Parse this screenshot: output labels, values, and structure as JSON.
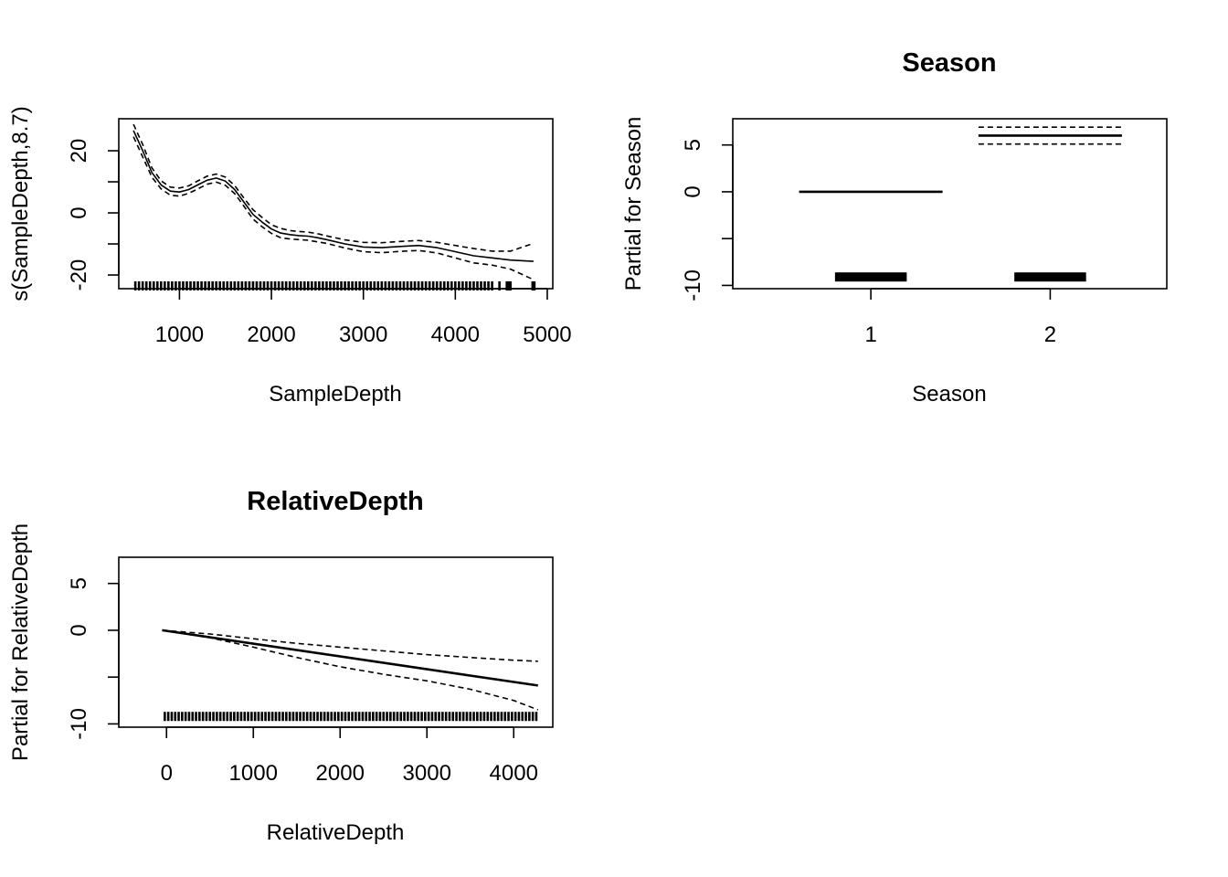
{
  "figure": {
    "background": "#ffffff",
    "ink": "#000000"
  },
  "chart_data": [
    {
      "id": "panel-sampledepth",
      "type": "line",
      "title": "",
      "xlabel": "SampleDepth",
      "ylabel": "s(SampleDepth,8.7)",
      "xlim": [
        340,
        5060
      ],
      "ylim": [
        -24.4,
        30.3
      ],
      "xticks": [
        1000,
        2000,
        3000,
        4000,
        5000
      ],
      "xtick_labels": [
        "1000",
        "2000",
        "3000",
        "4000",
        "5000"
      ],
      "yticks": [
        -20,
        -10,
        0,
        10,
        20
      ],
      "ytick_labels": [
        "-20",
        "",
        "0",
        "",
        "20"
      ],
      "grid": false,
      "series": [
        {
          "name": "fit",
          "style": "solid",
          "x": [
            500,
            600,
            700,
            800,
            900,
            1000,
            1100,
            1200,
            1300,
            1400,
            1500,
            1600,
            1700,
            1800,
            1900,
            2000,
            2100,
            2200,
            2300,
            2400,
            2500,
            2600,
            2800,
            3000,
            3200,
            3400,
            3600,
            3800,
            4000,
            4200,
            4400,
            4600,
            4850
          ],
          "y": [
            26.5,
            20,
            13,
            9,
            7,
            6.7,
            7.5,
            9,
            10.5,
            11.2,
            10.2,
            7.5,
            3.5,
            -0.5,
            -3,
            -5.2,
            -6.5,
            -7,
            -7.3,
            -7.5,
            -8,
            -8.6,
            -10,
            -11,
            -11.2,
            -10.8,
            -10.5,
            -11.2,
            -12.5,
            -13.8,
            -14.5,
            -15.2,
            -15.6
          ]
        },
        {
          "name": "upper",
          "style": "dashed",
          "x": [
            500,
            600,
            700,
            800,
            900,
            1000,
            1100,
            1200,
            1300,
            1400,
            1500,
            1600,
            1700,
            1800,
            1900,
            2000,
            2100,
            2200,
            2300,
            2400,
            2500,
            2600,
            2800,
            3000,
            3200,
            3400,
            3600,
            3800,
            4000,
            4200,
            4400,
            4600,
            4850
          ],
          "y": [
            28.5,
            22,
            14.5,
            10.3,
            8.3,
            8,
            8.7,
            10.3,
            11.8,
            12.5,
            11.5,
            8.8,
            4.8,
            1,
            -1.5,
            -3.8,
            -5,
            -5.7,
            -6,
            -6.2,
            -6.7,
            -7.4,
            -8.7,
            -9.5,
            -9.6,
            -9.2,
            -8.9,
            -9.5,
            -10.5,
            -11.5,
            -12.3,
            -12.3,
            -9.8
          ]
        },
        {
          "name": "lower",
          "style": "dashed",
          "x": [
            500,
            600,
            700,
            800,
            900,
            1000,
            1100,
            1200,
            1300,
            1400,
            1500,
            1600,
            1700,
            1800,
            1900,
            2000,
            2100,
            2200,
            2300,
            2400,
            2500,
            2600,
            2800,
            3000,
            3200,
            3400,
            3600,
            3800,
            4000,
            4200,
            4400,
            4600,
            4850
          ],
          "y": [
            24.5,
            18,
            11.5,
            7.7,
            5.7,
            5.4,
            6.3,
            7.7,
            9.2,
            9.9,
            8.9,
            6.2,
            2.2,
            -2,
            -4.5,
            -6.6,
            -8,
            -8.4,
            -8.6,
            -8.8,
            -9.3,
            -9.8,
            -11.3,
            -12.5,
            -12.8,
            -12.4,
            -12.1,
            -12.9,
            -14.5,
            -16.1,
            -16.8,
            -18.1,
            -21.5
          ]
        }
      ],
      "rug": {
        "y": -23.5,
        "x": [
          520,
          560,
          600,
          640,
          680,
          720,
          760,
          800,
          840,
          880,
          920,
          960,
          1000,
          1040,
          1080,
          1120,
          1160,
          1200,
          1240,
          1280,
          1320,
          1360,
          1400,
          1440,
          1480,
          1520,
          1560,
          1600,
          1640,
          1680,
          1720,
          1760,
          1800,
          1840,
          1880,
          1920,
          1960,
          2000,
          2040,
          2080,
          2120,
          2160,
          2200,
          2240,
          2280,
          2320,
          2360,
          2400,
          2440,
          2480,
          2520,
          2560,
          2600,
          2640,
          2680,
          2720,
          2760,
          2800,
          2840,
          2880,
          2920,
          2960,
          3000,
          3040,
          3080,
          3120,
          3160,
          3200,
          3240,
          3280,
          3320,
          3360,
          3400,
          3440,
          3480,
          3520,
          3560,
          3600,
          3640,
          3680,
          3720,
          3760,
          3800,
          3840,
          3880,
          3920,
          3960,
          4000,
          4040,
          4080,
          4120,
          4160,
          4200,
          4240,
          4280,
          4320,
          4360,
          4400,
          4480,
          4560,
          4580,
          4600,
          4840,
          4860
        ]
      }
    },
    {
      "id": "panel-season",
      "type": "line",
      "title": "Season",
      "xlabel": "Season",
      "ylabel": "Partial for Season",
      "xlim": [
        0.23,
        2.65
      ],
      "ylim": [
        -10.35,
        7.8
      ],
      "xticks": [
        1,
        2
      ],
      "xtick_labels": [
        "1",
        "2"
      ],
      "yticks": [
        -10,
        -5,
        0,
        5
      ],
      "ytick_labels": [
        "-10",
        "",
        "0",
        "5"
      ],
      "grid": false,
      "series": [
        {
          "name": "level 1 fit",
          "style": "solid",
          "weight": "thick",
          "x": [
            0.6,
            1.4
          ],
          "y": [
            0,
            0
          ]
        },
        {
          "name": "level 2 fit",
          "style": "solid",
          "weight": "thick",
          "x": [
            1.6,
            2.4
          ],
          "y": [
            6,
            6
          ]
        },
        {
          "name": "level 2 upper",
          "style": "dashed",
          "x": [
            1.6,
            2.4
          ],
          "y": [
            6.9,
            6.9
          ]
        },
        {
          "name": "level 2 lower",
          "style": "dashed",
          "x": [
            1.6,
            2.4
          ],
          "y": [
            5.1,
            5.1
          ]
        }
      ],
      "rug_bars": [
        {
          "x": [
            0.8,
            1.2
          ],
          "y": -9.1
        },
        {
          "x": [
            1.8,
            2.2
          ],
          "y": -9.1
        }
      ]
    },
    {
      "id": "panel-relativedepth",
      "type": "line",
      "title": "RelativeDepth",
      "xlabel": "RelativeDepth",
      "ylabel": "Partial for RelativeDepth",
      "xlim": [
        -550,
        4450
      ],
      "ylim": [
        -10.35,
        7.8
      ],
      "xticks": [
        0,
        1000,
        2000,
        3000,
        4000
      ],
      "xtick_labels": [
        "0",
        "1000",
        "2000",
        "3000",
        "4000"
      ],
      "yticks": [
        -10,
        -5,
        0,
        5
      ],
      "ytick_labels": [
        "-10",
        "",
        "0",
        "5"
      ],
      "grid": false,
      "series": [
        {
          "name": "fit",
          "style": "solid",
          "weight": "thick",
          "x": [
            -50,
            4280
          ],
          "y": [
            0,
            -5.9
          ]
        },
        {
          "name": "upper",
          "style": "dashed",
          "x": [
            -50,
            500,
            1000,
            1500,
            2000,
            2500,
            3000,
            3500,
            4000,
            4280
          ],
          "y": [
            0,
            -0.4,
            -0.9,
            -1.4,
            -1.8,
            -2.2,
            -2.6,
            -2.9,
            -3.2,
            -3.3
          ]
        },
        {
          "name": "lower",
          "style": "dashed",
          "x": [
            -50,
            500,
            1000,
            1500,
            2000,
            2500,
            3000,
            3500,
            4000,
            4280
          ],
          "y": [
            0,
            -0.8,
            -1.8,
            -2.9,
            -3.9,
            -4.7,
            -5.4,
            -6.3,
            -7.5,
            -8.5
          ]
        }
      ],
      "rug": {
        "y": -9.2,
        "x": [
          -20,
          20,
          60,
          100,
          140,
          180,
          220,
          260,
          300,
          340,
          380,
          420,
          460,
          500,
          540,
          580,
          620,
          660,
          700,
          740,
          780,
          820,
          860,
          900,
          940,
          980,
          1020,
          1060,
          1100,
          1140,
          1180,
          1220,
          1260,
          1300,
          1340,
          1380,
          1420,
          1460,
          1500,
          1540,
          1580,
          1620,
          1660,
          1700,
          1740,
          1780,
          1820,
          1860,
          1900,
          1940,
          1980,
          2020,
          2060,
          2100,
          2140,
          2180,
          2220,
          2260,
          2300,
          2340,
          2380,
          2420,
          2460,
          2500,
          2540,
          2580,
          2620,
          2660,
          2700,
          2740,
          2780,
          2820,
          2860,
          2900,
          2940,
          2980,
          3020,
          3060,
          3100,
          3140,
          3180,
          3220,
          3260,
          3300,
          3340,
          3380,
          3420,
          3460,
          3500,
          3540,
          3580,
          3620,
          3660,
          3700,
          3740,
          3780,
          3820,
          3860,
          3900,
          3940,
          3980,
          4020,
          4060,
          4100,
          4140,
          4180,
          4220,
          4260
        ]
      }
    }
  ]
}
